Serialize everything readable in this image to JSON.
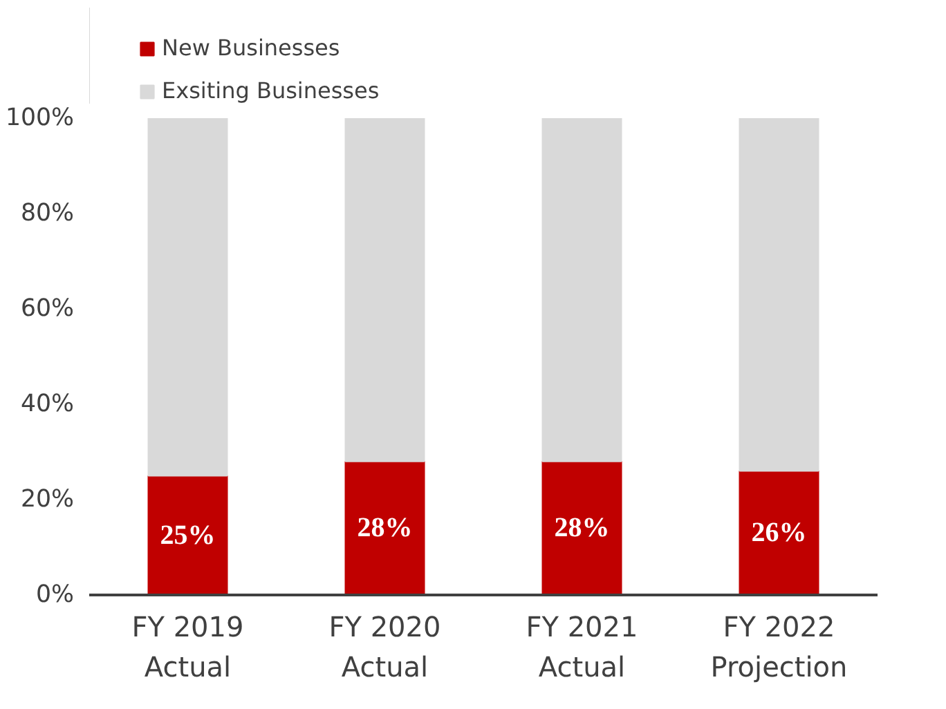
{
  "chart_data": {
    "type": "bar",
    "stacked": true,
    "categories": [
      "FY 2019\nActual",
      "FY 2020\nActual",
      "FY 2021\nActual",
      "FY 2022\nProjection"
    ],
    "series": [
      {
        "name": "New Businesses",
        "color": "#c00000",
        "values": [
          25,
          28,
          28,
          26
        ],
        "value_labels": [
          "25%",
          "28%",
          "28%",
          "26%"
        ]
      },
      {
        "name": "Exsiting Businesses",
        "color": "#d9d9d9",
        "values": [
          75,
          72,
          72,
          74
        ]
      }
    ],
    "ylim": [
      0,
      100
    ],
    "yticks": [
      {
        "value": 0,
        "label": "0%"
      },
      {
        "value": 20,
        "label": "20%"
      },
      {
        "value": 40,
        "label": "40%"
      },
      {
        "value": 60,
        "label": "60%"
      },
      {
        "value": 80,
        "label": "80%"
      },
      {
        "value": 100,
        "label": "100%"
      }
    ],
    "grid": false,
    "legend": "top left"
  }
}
